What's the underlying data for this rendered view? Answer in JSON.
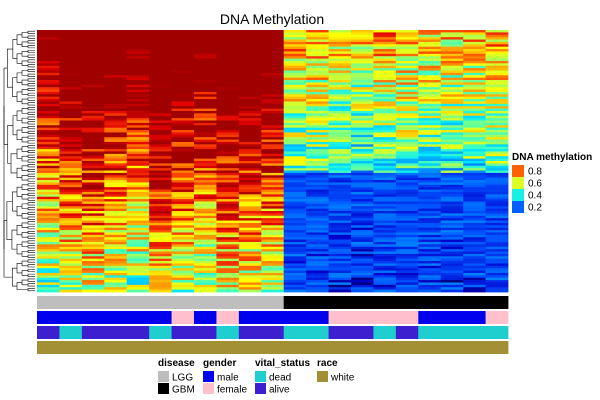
{
  "chart_data": {
    "type": "heatmap",
    "title": "DNA Methylation",
    "n_rows": 110,
    "columns": [
      {
        "disease": "LGG",
        "gender": "male",
        "vital_status": "alive",
        "race": "white"
      },
      {
        "disease": "LGG",
        "gender": "male",
        "vital_status": "dead",
        "race": "white"
      },
      {
        "disease": "LGG",
        "gender": "male",
        "vital_status": "alive",
        "race": "white"
      },
      {
        "disease": "LGG",
        "gender": "male",
        "vital_status": "alive",
        "race": "white"
      },
      {
        "disease": "LGG",
        "gender": "male",
        "vital_status": "alive",
        "race": "white"
      },
      {
        "disease": "LGG",
        "gender": "male",
        "vital_status": "dead",
        "race": "white"
      },
      {
        "disease": "LGG",
        "gender": "female",
        "vital_status": "alive",
        "race": "white"
      },
      {
        "disease": "LGG",
        "gender": "male",
        "vital_status": "alive",
        "race": "white"
      },
      {
        "disease": "LGG",
        "gender": "female",
        "vital_status": "dead",
        "race": "white"
      },
      {
        "disease": "LGG",
        "gender": "male",
        "vital_status": "alive",
        "race": "white"
      },
      {
        "disease": "LGG",
        "gender": "male",
        "vital_status": "alive",
        "race": "white"
      },
      {
        "disease": "GBM",
        "gender": "male",
        "vital_status": "dead",
        "race": "white"
      },
      {
        "disease": "GBM",
        "gender": "male",
        "vital_status": "dead",
        "race": "white"
      },
      {
        "disease": "GBM",
        "gender": "female",
        "vital_status": "alive",
        "race": "white"
      },
      {
        "disease": "GBM",
        "gender": "female",
        "vital_status": "alive",
        "race": "white"
      },
      {
        "disease": "GBM",
        "gender": "female",
        "vital_status": "dead",
        "race": "white"
      },
      {
        "disease": "GBM",
        "gender": "female",
        "vital_status": "alive",
        "race": "white"
      },
      {
        "disease": "GBM",
        "gender": "male",
        "vital_status": "dead",
        "race": "white"
      },
      {
        "disease": "GBM",
        "gender": "male",
        "vital_status": "dead",
        "race": "white"
      },
      {
        "disease": "GBM",
        "gender": "male",
        "vital_status": "dead",
        "race": "white"
      },
      {
        "disease": "GBM",
        "gender": "female",
        "vital_status": "dead",
        "race": "white"
      }
    ],
    "column_profile": [
      0.55,
      0.62,
      0.66,
      0.6,
      0.56,
      0.7,
      0.63,
      0.58,
      0.68,
      0.66,
      0.64,
      0.26,
      0.26,
      0.22,
      0.2,
      0.26,
      0.26,
      0.24,
      0.22,
      0.24,
      0.26
    ],
    "color_scale": {
      "title": "DNA methylation",
      "breaks": [
        0.8,
        0.6,
        0.4,
        0.2
      ],
      "range": [
        0,
        1
      ],
      "colors": [
        "#000080",
        "#0000cc",
        "#0050ff",
        "#00a0ff",
        "#00e5ff",
        "#40ffbf",
        "#a0ff60",
        "#ffff00",
        "#ffa500",
        "#ff5000",
        "#e00000",
        "#a00000"
      ]
    },
    "annotation_legends": [
      {
        "title": "disease",
        "items": [
          {
            "label": "LGG",
            "color": "#bebebe"
          },
          {
            "label": "GBM",
            "color": "#000000"
          }
        ]
      },
      {
        "title": "gender",
        "items": [
          {
            "label": "male",
            "color": "#0000ee"
          },
          {
            "label": "female",
            "color": "#ffc0cb"
          }
        ]
      },
      {
        "title": "vital_status",
        "items": [
          {
            "label": "dead",
            "color": "#1fcfcf"
          },
          {
            "label": "alive",
            "color": "#3d1fd0"
          }
        ]
      },
      {
        "title": "race",
        "items": [
          {
            "label": "white",
            "color": "#a39034"
          }
        ]
      }
    ]
  }
}
